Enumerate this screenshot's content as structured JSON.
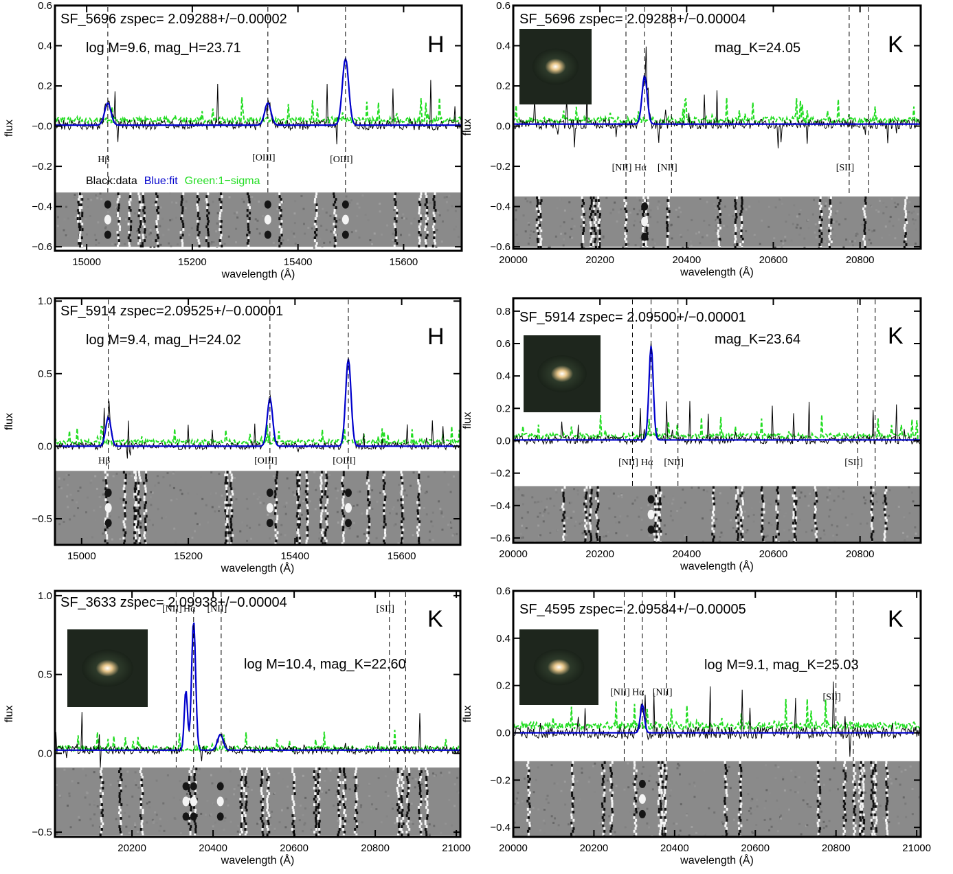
{
  "chart_data": [
    {
      "type": "line",
      "title": "SF_5696 zspec= 2.09288+/−0.00002",
      "annotation": "log M=9.6, mag_H=23.71",
      "band": "H",
      "xlabel": "wavelength (Å)",
      "ylabel": "flux",
      "xlim": [
        14940,
        15710
      ],
      "ylim": [
        -0.62,
        0.6
      ],
      "xticks": [
        15000,
        15200,
        15400,
        15600
      ],
      "yticks": [
        -0.6,
        -0.4,
        -0.2,
        -0.0,
        0.2,
        0.4,
        0.6
      ],
      "ytick_labels": [
        "−0.6",
        "−0.4",
        "−0.2",
        "−0.0",
        "0.2",
        "0.4",
        "0.6"
      ],
      "spectrum_region": [
        -0.33,
        0.6
      ],
      "image_strip": [
        -0.6,
        -0.33
      ],
      "lines": [
        {
          "x": 15040,
          "label": "Hβ",
          "label_y": -0.18
        },
        {
          "x": 15343,
          "label": "[OIII]",
          "label_y": -0.17
        },
        {
          "x": 15490,
          "label": "[OIII]",
          "label_y": -0.18
        }
      ],
      "fit_peaks": [
        {
          "x": 15040,
          "amp": 0.11,
          "sigma": 6
        },
        {
          "x": 15343,
          "amp": 0.11,
          "sigma": 6
        },
        {
          "x": 15490,
          "amp": 0.33,
          "sigma": 6
        }
      ],
      "fit_baseline": 0.005,
      "legend": [
        {
          "text": "Black:data",
          "color": "#000000"
        },
        {
          "text": "Blue:fit",
          "color": "#0000cc"
        },
        {
          "text": "Green:1−sigma",
          "color": "#22dd22"
        }
      ],
      "has_thumbnail": false
    },
    {
      "type": "line",
      "title": "SF_5696 zspec= 2.09288+/−0.00004",
      "annotation": "mag_K=24.05",
      "band": "K",
      "xlabel": "wavelength (Å)",
      "ylabel": "flux",
      "xlim": [
        20000,
        20940
      ],
      "ylim": [
        -0.61,
        0.6
      ],
      "xticks": [
        20000,
        20200,
        20400,
        20600,
        20800
      ],
      "yticks": [
        -0.6,
        -0.4,
        -0.2,
        0.0,
        0.2,
        0.4,
        0.6
      ],
      "ytick_labels": [
        "−0.6",
        "−0.4",
        "−0.2",
        "0.0",
        "0.2",
        "0.4",
        "0.6"
      ],
      "spectrum_region": [
        -0.35,
        0.6
      ],
      "image_strip": [
        -0.6,
        -0.35
      ],
      "lines": [
        {
          "x": 20260,
          "label": "[NII]",
          "label_y": -0.22
        },
        {
          "x": 20303,
          "label": "Hα",
          "label_y": -0.22
        },
        {
          "x": 20365,
          "label": "[NII]",
          "label_y": -0.22
        },
        {
          "x": 20775,
          "label": "[SII]",
          "label_y": -0.22
        },
        {
          "x": 20820,
          "label": null,
          "label_y": null
        }
      ],
      "fit_peaks": [
        {
          "x": 20303,
          "amp": 0.24,
          "sigma": 6
        }
      ],
      "fit_baseline": 0.01,
      "has_thumbnail": true
    },
    {
      "type": "line",
      "title": "SF_5914 zspec=2.09525+/−0.00001",
      "annotation": "log M=9.4, mag_H=24.02",
      "band": "H",
      "xlabel": "wavelength (Å)",
      "ylabel": "flux",
      "xlim": [
        14950,
        15710
      ],
      "ylim": [
        -0.68,
        1.02
      ],
      "xticks": [
        15000,
        15200,
        15400,
        15600
      ],
      "yticks": [
        -0.5,
        0.0,
        0.5,
        1.0
      ],
      "ytick_labels": [
        "−0.5",
        "0.0",
        "0.5",
        "1.0"
      ],
      "spectrum_region": [
        -0.17,
        1.02
      ],
      "image_strip": [
        -0.68,
        -0.17
      ],
      "lines": [
        {
          "x": 15050,
          "label": "Hβ",
          "label_y": -0.12
        },
        {
          "x": 15353,
          "label": "[OIII]",
          "label_y": -0.12
        },
        {
          "x": 15500,
          "label": "[OIII]",
          "label_y": -0.12
        }
      ],
      "fit_peaks": [
        {
          "x": 15050,
          "amp": 0.2,
          "sigma": 5
        },
        {
          "x": 15353,
          "amp": 0.33,
          "sigma": 5
        },
        {
          "x": 15500,
          "amp": 0.6,
          "sigma": 5
        }
      ],
      "fit_baseline": 0.0,
      "has_thumbnail": false
    },
    {
      "type": "line",
      "title": "SF_5914 zspec= 2.09500+/−0.00001",
      "annotation": "mag_K=23.64",
      "band": "K",
      "xlabel": "wavelength (Å)",
      "ylabel": "flux",
      "xlim": [
        20000,
        20940
      ],
      "ylim": [
        -0.63,
        0.88
      ],
      "xticks": [
        20000,
        20200,
        20400,
        20600,
        20800
      ],
      "yticks": [
        -0.6,
        -0.4,
        -0.2,
        0.0,
        0.2,
        0.4,
        0.6,
        0.8
      ],
      "ytick_labels": [
        "−0.6",
        "−0.4",
        "−0.2",
        "0.0",
        "0.2",
        "0.4",
        "0.6",
        "0.8"
      ],
      "spectrum_region": [
        -0.28,
        0.88
      ],
      "image_strip": [
        -0.63,
        -0.28
      ],
      "lines": [
        {
          "x": 20275,
          "label": "[NII]",
          "label_y": -0.15
        },
        {
          "x": 20318,
          "label": "Hα",
          "label_y": -0.15
        },
        {
          "x": 20380,
          "label": "[NII]",
          "label_y": -0.15
        },
        {
          "x": 20795,
          "label": "[SII]",
          "label_y": -0.15
        },
        {
          "x": 20835,
          "label": null,
          "label_y": null
        }
      ],
      "fit_peaks": [
        {
          "x": 20318,
          "amp": 0.58,
          "sigma": 5
        }
      ],
      "fit_baseline": 0.005,
      "has_thumbnail": true
    },
    {
      "type": "line",
      "title": "SF_3633 zspec= 2.09938+/−0.00004",
      "annotation": "log M=10.4, mag_K=22.60",
      "band": "K",
      "xlabel": "wavelength (Å)",
      "ylabel": "flux",
      "xlim": [
        20010,
        21010
      ],
      "ylim": [
        -0.53,
        1.03
      ],
      "xticks": [
        20200,
        20400,
        20600,
        20800,
        21000
      ],
      "yticks": [
        -0.5,
        0.0,
        0.5,
        1.0
      ],
      "ytick_labels": [
        "−0.5",
        "0.0",
        "0.5",
        "1.0"
      ],
      "spectrum_region": [
        -0.09,
        1.03
      ],
      "image_strip": [
        -0.52,
        -0.09
      ],
      "lines": [
        {
          "x": 20309,
          "label": "[NII]",
          "label_y": 0.9
        },
        {
          "x": 20352,
          "label": "Hα",
          "label_y": 0.9
        },
        {
          "x": 20420,
          "label": "[NII]",
          "label_y": 0.9
        },
        {
          "x": 20835,
          "label": "[SII]",
          "label_y": 0.9
        },
        {
          "x": 20875,
          "label": null,
          "label_y": null
        }
      ],
      "fit_peaks": [
        {
          "x": 20352,
          "amp": 0.82,
          "sigma": 5
        },
        {
          "x": 20333,
          "amp": 0.38,
          "sigma": 4
        },
        {
          "x": 20418,
          "amp": 0.1,
          "sigma": 7
        }
      ],
      "fit_baseline": 0.02,
      "has_thumbnail": true
    },
    {
      "type": "line",
      "title": "SF_4595 zspec= 2.09584+/−0.00005",
      "annotation": "log M=9.1, mag_K=25.03",
      "band": "K",
      "xlabel": "wavelength (Å)",
      "ylabel": "flux",
      "xlim": [
        20000,
        21010
      ],
      "ylim": [
        -0.44,
        0.6
      ],
      "xticks": [
        20000,
        20200,
        20400,
        20600,
        20800,
        21000
      ],
      "yticks": [
        -0.4,
        -0.2,
        0.0,
        0.2,
        0.4,
        0.6
      ],
      "ytick_labels": [
        "−0.4",
        "−0.2",
        "0.0",
        "0.2",
        "0.4",
        "0.6"
      ],
      "spectrum_region": [
        -0.12,
        0.6
      ],
      "image_strip": [
        -0.44,
        -0.12
      ],
      "lines": [
        {
          "x": 20275,
          "label": "[NII]",
          "label_y": 0.16
        },
        {
          "x": 20320,
          "label": "Hα",
          "label_y": 0.16
        },
        {
          "x": 20380,
          "label": "[NII]",
          "label_y": 0.16
        },
        {
          "x": 20800,
          "label": "[SII]",
          "label_y": 0.14
        },
        {
          "x": 20843,
          "label": null,
          "label_y": null
        }
      ],
      "fit_peaks": [
        {
          "x": 20320,
          "amp": 0.12,
          "sigma": 5
        }
      ],
      "fit_baseline": 0.0,
      "has_thumbnail": true
    }
  ],
  "colors": {
    "data": "#000000",
    "fit": "#0000cc",
    "sigma": "#22dd22",
    "markers": "#000000"
  }
}
